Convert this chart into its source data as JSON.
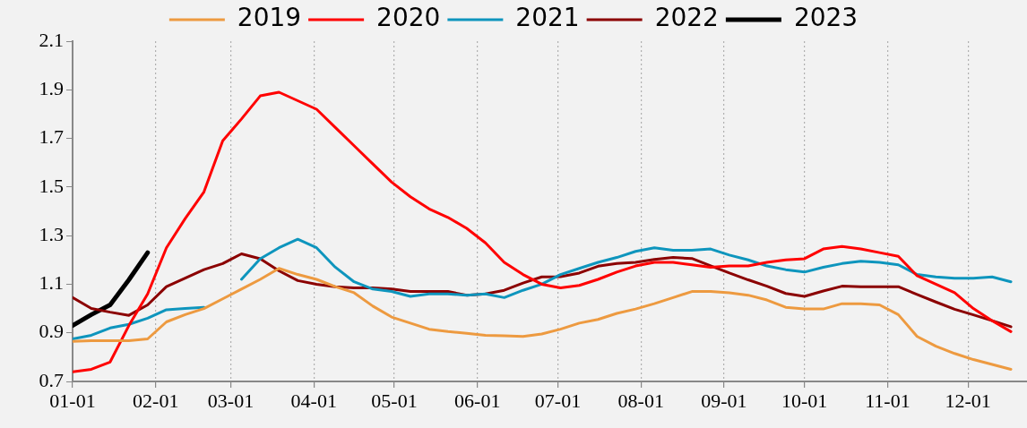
{
  "chart_data": {
    "type": "line",
    "x": [
      "--01-01",
      "--01-08",
      "--01-15",
      "--01-22",
      "--01-29",
      "--02-05",
      "--02-12",
      "--02-19",
      "--02-26",
      "--03-05",
      "--03-12",
      "--03-19",
      "--03-26",
      "--04-02",
      "--04-09",
      "--04-16",
      "--04-23",
      "--04-30",
      "--05-07",
      "--05-14",
      "--05-21",
      "--05-28",
      "--06-04",
      "--06-11",
      "--06-18",
      "--06-25",
      "--07-02",
      "--07-09",
      "--07-16",
      "--07-23",
      "--07-30",
      "--08-06",
      "--08-13",
      "--08-20",
      "--08-27",
      "--09-03",
      "--09-10",
      "--09-17",
      "--09-24",
      "--10-01",
      "--10-08",
      "--10-15",
      "--10-22",
      "--10-29",
      "--11-05",
      "--11-12",
      "--11-19",
      "--11-26",
      "--12-03",
      "--12-10",
      "--12-17"
    ],
    "series": [
      {
        "name": "2019",
        "color": "#ed9a40",
        "values": [
          0.865,
          0.868,
          0.868,
          0.868,
          0.875,
          0.945,
          0.975,
          1.0,
          1.04,
          1.08,
          1.12,
          1.165,
          1.14,
          1.12,
          1.09,
          1.065,
          1.01,
          0.965,
          0.94,
          0.915,
          0.905,
          0.898,
          0.89,
          0.888,
          0.885,
          0.895,
          0.915,
          0.94,
          0.955,
          0.98,
          0.998,
          1.02,
          1.045,
          1.07,
          1.07,
          1.065,
          1.055,
          1.035,
          1.005,
          0.998,
          0.998,
          1.02,
          1.02,
          1.015,
          0.975,
          0.885,
          0.845,
          0.815,
          0.79,
          0.77,
          0.75
        ]
      },
      {
        "name": "2020",
        "color": "#ff0000",
        "values": [
          0.74,
          0.75,
          0.78,
          0.93,
          1.06,
          1.25,
          1.37,
          1.48,
          1.69,
          1.78,
          1.875,
          1.89,
          1.855,
          1.82,
          1.745,
          1.67,
          1.595,
          1.52,
          1.46,
          1.41,
          1.375,
          1.33,
          1.27,
          1.19,
          1.14,
          1.1,
          1.085,
          1.095,
          1.12,
          1.15,
          1.175,
          1.19,
          1.19,
          1.18,
          1.17,
          1.175,
          1.175,
          1.19,
          1.2,
          1.205,
          1.245,
          1.255,
          1.245,
          1.23,
          1.215,
          1.135,
          1.1,
          1.065,
          1.0,
          0.95,
          0.905
        ]
      },
      {
        "name": "2021",
        "color": "#0e95bd",
        "values": [
          0.875,
          0.89,
          0.92,
          0.935,
          0.96,
          0.995,
          1.0,
          1.005,
          null,
          1.12,
          1.205,
          1.25,
          1.285,
          1.25,
          1.17,
          1.11,
          1.08,
          1.07,
          1.05,
          1.06,
          1.06,
          1.055,
          1.06,
          1.045,
          1.075,
          1.1,
          1.14,
          1.165,
          1.19,
          1.21,
          1.235,
          1.25,
          1.24,
          1.24,
          1.245,
          1.22,
          1.2,
          1.175,
          1.16,
          1.15,
          1.17,
          1.185,
          1.195,
          1.19,
          1.18,
          1.14,
          1.13,
          1.125,
          1.125,
          1.13,
          1.11
        ]
      },
      {
        "name": "2022",
        "color": "#8b0000",
        "values": [
          1.045,
          1.0,
          0.985,
          0.972,
          1.015,
          1.09,
          1.125,
          1.16,
          1.185,
          1.225,
          1.205,
          1.155,
          1.115,
          1.1,
          1.09,
          1.085,
          1.085,
          1.08,
          1.07,
          1.07,
          1.07,
          1.055,
          1.06,
          1.075,
          1.105,
          1.13,
          1.131,
          1.146,
          1.174,
          1.185,
          1.19,
          1.202,
          1.21,
          1.206,
          1.176,
          1.146,
          1.118,
          1.092,
          1.062,
          1.05,
          1.072,
          1.092,
          1.09,
          1.09,
          1.09,
          1.058,
          1.027,
          0.997,
          0.974,
          0.95,
          0.925
        ]
      },
      {
        "name": "2023",
        "color": "#000000",
        "values": [
          0.93,
          0.975,
          1.015,
          1.118,
          1.23,
          null,
          null,
          null,
          null,
          null,
          null,
          null,
          null,
          null,
          null,
          null,
          null,
          null,
          null,
          null,
          null,
          null,
          null,
          null,
          null,
          null,
          null,
          null,
          null,
          null,
          null,
          null,
          null,
          null,
          null,
          null,
          null,
          null,
          null,
          null,
          null,
          null,
          null,
          null,
          null,
          null,
          null,
          null,
          null,
          null,
          null
        ]
      }
    ],
    "xlim": [
      "--01-01",
      "--12-23"
    ],
    "xticks": [
      {
        "value": "--01-01",
        "label": "01-01"
      },
      {
        "value": "--02-01",
        "label": "02-01"
      },
      {
        "value": "--03-01",
        "label": "03-01"
      },
      {
        "value": "--04-01",
        "label": "04-01"
      },
      {
        "value": "--05-01",
        "label": "05-01"
      },
      {
        "value": "--06-01",
        "label": "06-01"
      },
      {
        "value": "--07-01",
        "label": "07-01"
      },
      {
        "value": "--08-01",
        "label": "08-01"
      },
      {
        "value": "--09-01",
        "label": "09-01"
      },
      {
        "value": "--10-01",
        "label": "10-01"
      },
      {
        "value": "--11-01",
        "label": "11-01"
      },
      {
        "value": "--12-01",
        "label": "12-01"
      }
    ],
    "ylim": [
      0.7,
      2.1
    ],
    "yticks": [
      0.7,
      0.9,
      1.1,
      1.3,
      1.5,
      1.7,
      1.9,
      2.1
    ],
    "grid": "x",
    "legend": "top",
    "marker": "none",
    "line_style": "solid"
  }
}
